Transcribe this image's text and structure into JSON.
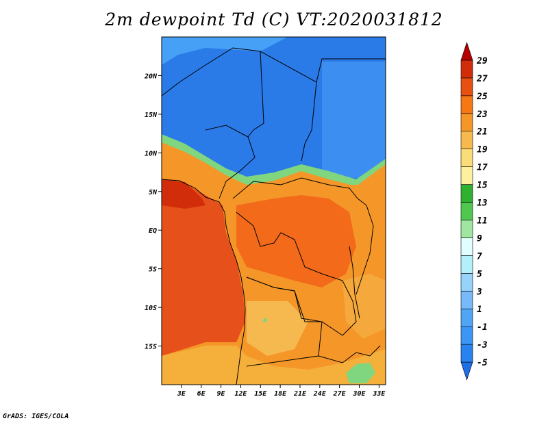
{
  "title": "2m dewpoint Td (C) VT:2020031812",
  "credit": "GrADS: IGES/COLA",
  "map": {
    "lon_range": [
      0,
      34
    ],
    "lat_range": [
      -20,
      25
    ],
    "x_ticks": [
      {
        "lon": 3,
        "label": "3E"
      },
      {
        "lon": 6,
        "label": "6E"
      },
      {
        "lon": 9,
        "label": "9E"
      },
      {
        "lon": 12,
        "label": "12E"
      },
      {
        "lon": 15,
        "label": "15E"
      },
      {
        "lon": 18,
        "label": "18E"
      },
      {
        "lon": 21,
        "label": "21E"
      },
      {
        "lon": 24,
        "label": "24E"
      },
      {
        "lon": 27,
        "label": "27E"
      },
      {
        "lon": 30,
        "label": "30E"
      },
      {
        "lon": 33,
        "label": "33E"
      }
    ],
    "y_ticks": [
      {
        "lat": 20,
        "label": "20N"
      },
      {
        "lat": 15,
        "label": "15N"
      },
      {
        "lat": 10,
        "label": "10N"
      },
      {
        "lat": 5,
        "label": "5N"
      },
      {
        "lat": 0,
        "label": "EQ"
      },
      {
        "lat": -5,
        "label": "5S"
      },
      {
        "lat": -10,
        "label": "10S"
      },
      {
        "lat": -15,
        "label": "15S"
      }
    ]
  },
  "colorbar": {
    "levels": [
      "-5",
      "-3",
      "-1",
      "1",
      "3",
      "5",
      "7",
      "9",
      "11",
      "13",
      "15",
      "17",
      "19",
      "21",
      "23",
      "25",
      "27",
      "29"
    ],
    "colors": [
      "#1e6ee6",
      "#2882f0",
      "#3c96f5",
      "#50a5f5",
      "#78b9fa",
      "#96d2fa",
      "#b4f0fa",
      "#e1ffff",
      "#a0e6a0",
      "#50c850",
      "#30b030",
      "#fff0a0",
      "#fadc78",
      "#f5b950",
      "#f59628",
      "#f57814",
      "#e65010",
      "#d22d0a",
      "#b40000"
    ]
  }
}
